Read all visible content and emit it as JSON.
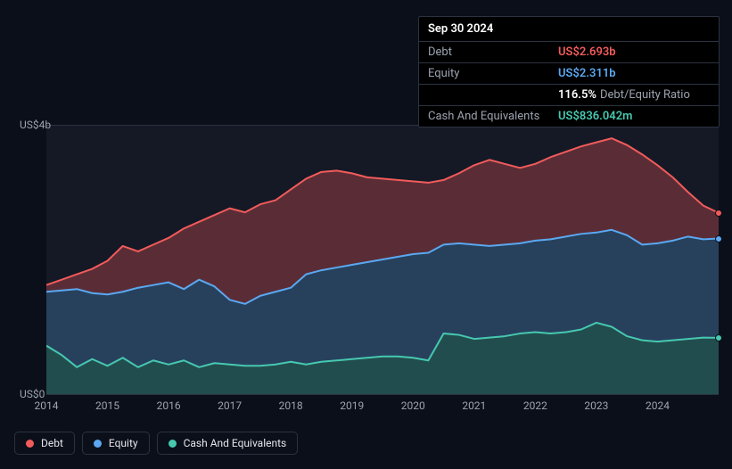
{
  "tooltip": {
    "date": "Sep 30 2024",
    "rows": {
      "debt": {
        "label": "Debt",
        "value": "US$2.693b"
      },
      "equity": {
        "label": "Equity",
        "value": "US$2.311b"
      },
      "ratio": {
        "label": "",
        "value": "116.5%",
        "suffix": "Debt/Equity Ratio"
      },
      "cash": {
        "label": "Cash And Equivalents",
        "value": "US$836.042m"
      }
    }
  },
  "chart": {
    "type": "area",
    "xlim": [
      2014,
      2025
    ],
    "ylim": [
      0,
      4.0
    ],
    "y_ticks": [
      {
        "v": 4.0,
        "label": "US$4b"
      },
      {
        "v": 0.0,
        "label": "US$0"
      }
    ],
    "x_ticks": [
      2014,
      2015,
      2016,
      2017,
      2018,
      2019,
      2020,
      2021,
      2022,
      2023,
      2024
    ],
    "plot_bg": "#141925",
    "grid_color": "#2b3240",
    "background": "#0b0f1a",
    "axis_text_color": "#9ca3af",
    "axis_fontsize": 12,
    "series": {
      "debt": {
        "label": "Debt",
        "line_color": "#f15b5b",
        "fill_color": "rgba(241,91,91,0.32)",
        "line_width": 2,
        "data": [
          [
            2014.0,
            1.62
          ],
          [
            2014.25,
            1.7
          ],
          [
            2014.5,
            1.78
          ],
          [
            2014.75,
            1.86
          ],
          [
            2015.0,
            1.98
          ],
          [
            2015.25,
            2.2
          ],
          [
            2015.5,
            2.12
          ],
          [
            2015.75,
            2.22
          ],
          [
            2016.0,
            2.32
          ],
          [
            2016.25,
            2.46
          ],
          [
            2016.5,
            2.56
          ],
          [
            2016.75,
            2.66
          ],
          [
            2017.0,
            2.76
          ],
          [
            2017.25,
            2.7
          ],
          [
            2017.5,
            2.82
          ],
          [
            2017.75,
            2.88
          ],
          [
            2018.0,
            3.04
          ],
          [
            2018.25,
            3.2
          ],
          [
            2018.5,
            3.3
          ],
          [
            2018.75,
            3.32
          ],
          [
            2019.0,
            3.28
          ],
          [
            2019.25,
            3.22
          ],
          [
            2019.5,
            3.2
          ],
          [
            2019.75,
            3.18
          ],
          [
            2020.0,
            3.16
          ],
          [
            2020.25,
            3.14
          ],
          [
            2020.5,
            3.18
          ],
          [
            2020.75,
            3.28
          ],
          [
            2021.0,
            3.4
          ],
          [
            2021.25,
            3.48
          ],
          [
            2021.5,
            3.42
          ],
          [
            2021.75,
            3.36
          ],
          [
            2022.0,
            3.42
          ],
          [
            2022.25,
            3.52
          ],
          [
            2022.5,
            3.6
          ],
          [
            2022.75,
            3.68
          ],
          [
            2023.0,
            3.74
          ],
          [
            2023.25,
            3.8
          ],
          [
            2023.5,
            3.7
          ],
          [
            2023.75,
            3.56
          ],
          [
            2024.0,
            3.4
          ],
          [
            2024.25,
            3.22
          ],
          [
            2024.5,
            3.0
          ],
          [
            2024.75,
            2.8
          ],
          [
            2025.0,
            2.693
          ]
        ]
      },
      "equity": {
        "label": "Equity",
        "line_color": "#5ba8f1",
        "fill_color": "rgba(91,168,241,0.28)",
        "line_width": 2,
        "data": [
          [
            2014.0,
            1.52
          ],
          [
            2014.25,
            1.54
          ],
          [
            2014.5,
            1.56
          ],
          [
            2014.75,
            1.5
          ],
          [
            2015.0,
            1.48
          ],
          [
            2015.25,
            1.52
          ],
          [
            2015.5,
            1.58
          ],
          [
            2015.75,
            1.62
          ],
          [
            2016.0,
            1.66
          ],
          [
            2016.25,
            1.56
          ],
          [
            2016.5,
            1.7
          ],
          [
            2016.75,
            1.6
          ],
          [
            2017.0,
            1.4
          ],
          [
            2017.25,
            1.34
          ],
          [
            2017.5,
            1.46
          ],
          [
            2017.75,
            1.52
          ],
          [
            2018.0,
            1.58
          ],
          [
            2018.25,
            1.78
          ],
          [
            2018.5,
            1.84
          ],
          [
            2018.75,
            1.88
          ],
          [
            2019.0,
            1.92
          ],
          [
            2019.25,
            1.96
          ],
          [
            2019.5,
            2.0
          ],
          [
            2019.75,
            2.04
          ],
          [
            2020.0,
            2.08
          ],
          [
            2020.25,
            2.1
          ],
          [
            2020.5,
            2.22
          ],
          [
            2020.75,
            2.24
          ],
          [
            2021.0,
            2.22
          ],
          [
            2021.25,
            2.2
          ],
          [
            2021.5,
            2.22
          ],
          [
            2021.75,
            2.24
          ],
          [
            2022.0,
            2.28
          ],
          [
            2022.25,
            2.3
          ],
          [
            2022.5,
            2.34
          ],
          [
            2022.75,
            2.38
          ],
          [
            2023.0,
            2.4
          ],
          [
            2023.25,
            2.44
          ],
          [
            2023.5,
            2.36
          ],
          [
            2023.75,
            2.22
          ],
          [
            2024.0,
            2.24
          ],
          [
            2024.25,
            2.28
          ],
          [
            2024.5,
            2.34
          ],
          [
            2024.75,
            2.3
          ],
          [
            2025.0,
            2.311
          ]
        ]
      },
      "cash": {
        "label": "Cash And Equivalents",
        "line_color": "#46c8b0",
        "fill_color": "rgba(70,200,176,0.30)",
        "line_width": 2,
        "data": [
          [
            2014.0,
            0.72
          ],
          [
            2014.25,
            0.58
          ],
          [
            2014.5,
            0.4
          ],
          [
            2014.75,
            0.52
          ],
          [
            2015.0,
            0.42
          ],
          [
            2015.25,
            0.54
          ],
          [
            2015.5,
            0.4
          ],
          [
            2015.75,
            0.5
          ],
          [
            2016.0,
            0.44
          ],
          [
            2016.25,
            0.5
          ],
          [
            2016.5,
            0.4
          ],
          [
            2016.75,
            0.46
          ],
          [
            2017.0,
            0.44
          ],
          [
            2017.25,
            0.42
          ],
          [
            2017.5,
            0.42
          ],
          [
            2017.75,
            0.44
          ],
          [
            2018.0,
            0.48
          ],
          [
            2018.25,
            0.44
          ],
          [
            2018.5,
            0.48
          ],
          [
            2018.75,
            0.5
          ],
          [
            2019.0,
            0.52
          ],
          [
            2019.25,
            0.54
          ],
          [
            2019.5,
            0.56
          ],
          [
            2019.75,
            0.56
          ],
          [
            2020.0,
            0.54
          ],
          [
            2020.25,
            0.5
          ],
          [
            2020.5,
            0.9
          ],
          [
            2020.75,
            0.88
          ],
          [
            2021.0,
            0.82
          ],
          [
            2021.25,
            0.84
          ],
          [
            2021.5,
            0.86
          ],
          [
            2021.75,
            0.9
          ],
          [
            2022.0,
            0.92
          ],
          [
            2022.25,
            0.9
          ],
          [
            2022.5,
            0.92
          ],
          [
            2022.75,
            0.96
          ],
          [
            2023.0,
            1.06
          ],
          [
            2023.25,
            1.0
          ],
          [
            2023.5,
            0.86
          ],
          [
            2023.75,
            0.8
          ],
          [
            2024.0,
            0.78
          ],
          [
            2024.25,
            0.8
          ],
          [
            2024.5,
            0.82
          ],
          [
            2024.75,
            0.84
          ],
          [
            2025.0,
            0.836
          ]
        ]
      }
    }
  },
  "legend": {
    "items": [
      {
        "key": "debt",
        "label": "Debt",
        "color": "#f15b5b"
      },
      {
        "key": "equity",
        "label": "Equity",
        "color": "#5ba8f1"
      },
      {
        "key": "cash",
        "label": "Cash And Equivalents",
        "color": "#46c8b0"
      }
    ]
  }
}
